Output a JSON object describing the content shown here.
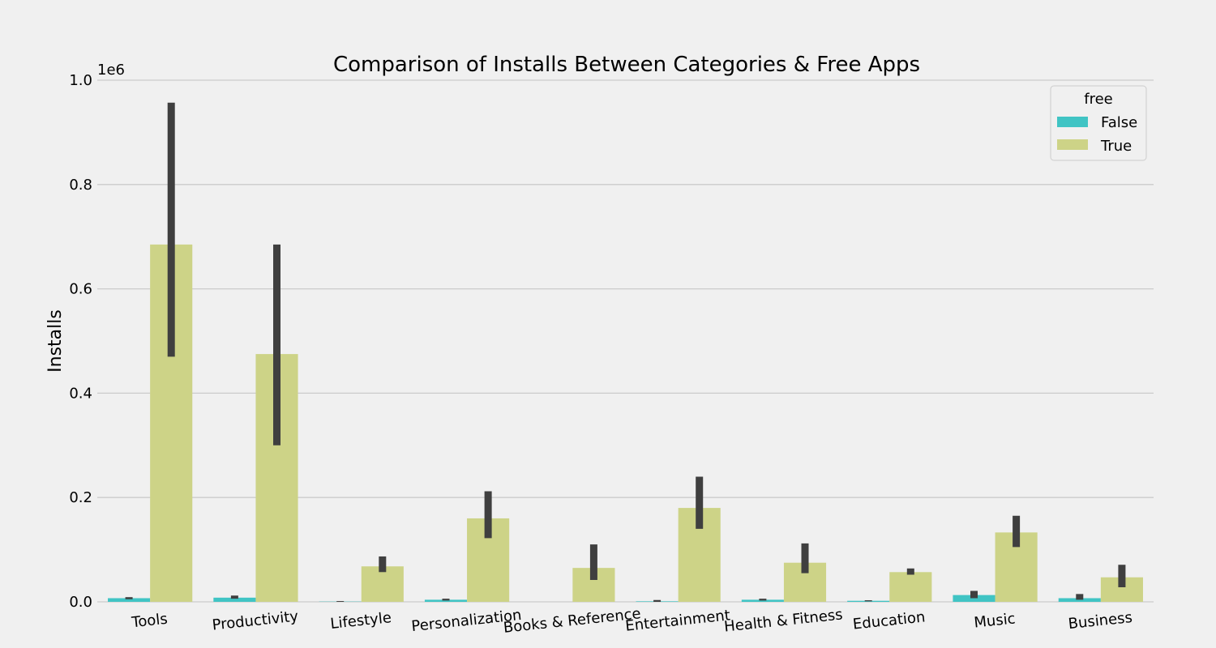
{
  "chart_data": {
    "type": "bar",
    "title": "Comparison of Installs Between Categories & Free Apps",
    "xlabel": "",
    "ylabel": "Installs",
    "y_offset_label": "1e6",
    "yticks": [
      "0.0",
      "0.2",
      "0.4",
      "0.6",
      "0.8",
      "1.0"
    ],
    "ylim": [
      0,
      1000000
    ],
    "grid": "horizontal",
    "legend": {
      "title": "free",
      "placement": "top-right"
    },
    "categories": [
      "Tools",
      "Productivity",
      "Lifestyle",
      "Personalization",
      "Books & Reference",
      "Entertainment",
      "Health & Fitness",
      "Education",
      "Music",
      "Business"
    ],
    "series": [
      {
        "name": "False",
        "color": "#40c4c4",
        "values": [
          7000,
          8000,
          500,
          4000,
          0,
          1000,
          4000,
          2000,
          13000,
          7000
        ],
        "ci": [
          [
            5000,
            9000
          ],
          [
            6000,
            12000
          ],
          [
            0,
            1500
          ],
          [
            2500,
            6000
          ],
          [
            0,
            0
          ],
          [
            0,
            3500
          ],
          [
            2500,
            6000
          ],
          [
            1000,
            3000
          ],
          [
            7000,
            21000
          ],
          [
            4000,
            15000
          ]
        ]
      },
      {
        "name": "True",
        "color": "#cdd387",
        "values": [
          685000,
          475000,
          68000,
          160000,
          65000,
          180000,
          75000,
          57000,
          133000,
          47000
        ],
        "ci": [
          [
            470000,
            957000
          ],
          [
            300000,
            685000
          ],
          [
            57000,
            87000
          ],
          [
            122000,
            212000
          ],
          [
            42000,
            110000
          ],
          [
            140000,
            240000
          ],
          [
            55000,
            112000
          ],
          [
            52000,
            64000
          ],
          [
            105000,
            165000
          ],
          [
            28000,
            71000
          ]
        ]
      }
    ]
  }
}
